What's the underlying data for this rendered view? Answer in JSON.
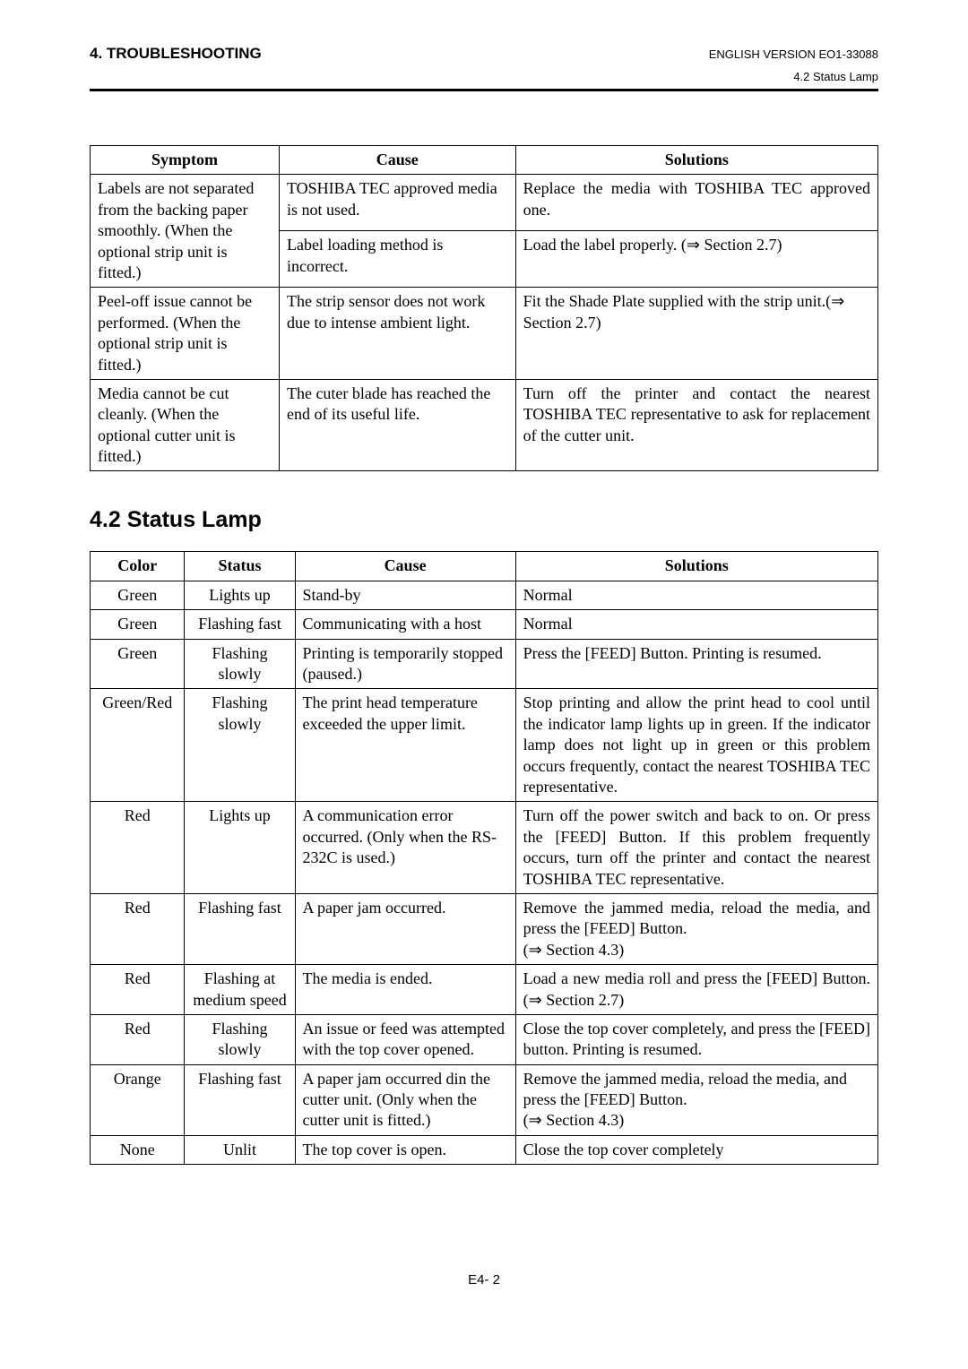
{
  "header": {
    "chapter": "4. TROUBLESHOOTING",
    "version": "ENGLISH VERSION EO1-33088",
    "subsection": "4.2 Status Lamp"
  },
  "table1": {
    "headers": [
      "Symptom",
      "Cause",
      "Solutions"
    ],
    "rows": [
      {
        "symptom_rowspan": 2,
        "symptom": "Labels are not separated from the backing paper smoothly. (When the optional strip unit is fitted.)",
        "cause": "TOSHIBA TEC approved media is not used.",
        "solutions": "Replace the media with TOSHIBA TEC approved one.",
        "solutions_justify": true
      },
      {
        "symptom": null,
        "cause": "Label loading method is incorrect.",
        "solutions": "Load the label properly. (⇒ Section 2.7)"
      },
      {
        "symptom": "Peel-off issue cannot be performed. (When the optional strip unit is fitted.)",
        "cause": "The strip sensor does not work due to intense ambient light.",
        "solutions": "Fit the Shade Plate supplied with the strip unit.(⇒ Section 2.7)"
      },
      {
        "symptom": "Media cannot be cut cleanly. (When the optional cutter unit is fitted.)",
        "cause": "The cuter blade has reached the end of its useful life.",
        "solutions": "Turn off the printer and contact the nearest TOSHIBA TEC representative to ask for replacement of the cutter unit.",
        "solutions_justify": true
      }
    ]
  },
  "section": {
    "title": "4.2  Status Lamp"
  },
  "table2": {
    "headers": [
      "Color",
      "Status",
      "Cause",
      "Solutions"
    ],
    "rows": [
      {
        "color": "Green",
        "status": "Lights up",
        "cause": "Stand-by",
        "solutions": "Normal"
      },
      {
        "color": "Green",
        "status": "Flashing fast",
        "cause": "Communicating with a host",
        "solutions": "Normal"
      },
      {
        "color": "Green",
        "status": "Flashing slowly",
        "cause": "Printing is temporarily stopped (paused.)",
        "solutions": "Press the [FEED] Button.  Printing is resumed.",
        "solutions_justify": true
      },
      {
        "color": "Green/Red",
        "status": "Flashing slowly",
        "cause": "The print head temperature exceeded the upper limit.",
        "solutions": "Stop printing and allow the print head to cool until the indicator lamp lights up in green. If the indicator lamp does not light up in green or this problem occurs frequently, contact the nearest TOSHIBA TEC representative.",
        "solutions_justify": true
      },
      {
        "color": "Red",
        "status": "Lights up",
        "cause": "A communication error occurred. (Only when the RS-232C is used.)",
        "solutions": "Turn off the power switch and back to on. Or press the [FEED] Button. If this problem frequently occurs, turn off the printer and contact the nearest TOSHIBA TEC representative.",
        "solutions_justify": true
      },
      {
        "color": "Red",
        "status": "Flashing fast",
        "cause": "A paper jam occurred.",
        "solutions": "Remove the jammed media, reload the media, and press the [FEED] Button.\n(⇒ Section 4.3)",
        "solutions_justify": true
      },
      {
        "color": "Red",
        "status": "Flashing at medium speed",
        "cause": "The media is ended.",
        "solutions": "Load a new media roll and press the [FEED] Button.  (⇒ Section 2.7)",
        "solutions_justify": true
      },
      {
        "color": "Red",
        "status": "Flashing slowly",
        "cause": "An issue or feed was attempted with the top cover opened.",
        "solutions": "Close the top cover completely, and press the [FEED] button. Printing is resumed.",
        "solutions_justify": true
      },
      {
        "color": "Orange",
        "status": "Flashing fast",
        "cause": "A paper jam occurred din the cutter unit.  (Only when the cutter unit is fitted.)",
        "solutions": "Remove the jammed media, reload the media, and press the [FEED] Button.\n(⇒ Section 4.3)"
      },
      {
        "color": "None",
        "status": "Unlit",
        "cause": "The top cover is open.",
        "solutions": "Close the top cover completely"
      }
    ]
  },
  "footer": {
    "page": "E4- 2"
  },
  "styles": {
    "background": "#ffffff",
    "text_color": "#000000",
    "border_color": "#000000",
    "rule_width": 3,
    "body_font": "Times New Roman",
    "header_font": "Arial",
    "body_fontsize": 18,
    "section_title_fontsize": 25,
    "header_fontsize": 17,
    "small_fontsize": 13
  }
}
